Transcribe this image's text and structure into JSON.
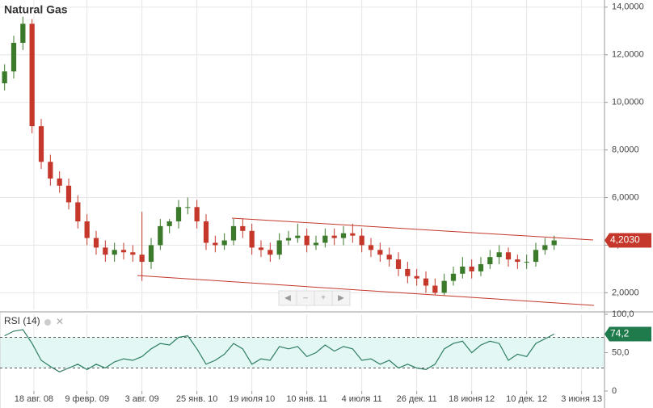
{
  "chart_data": {
    "type": "candlestick",
    "title": "Natural Gas",
    "up_color": "#3b7a2a",
    "down_color": "#c4372a",
    "x": [
      0.5,
      1.5,
      2.5,
      3.5,
      4.5,
      5.5,
      6.5,
      7.5,
      8.5,
      9.5,
      10.5,
      11.5,
      12.5,
      13.5,
      14.5,
      15.5,
      16.5,
      17.5,
      18.5,
      19.5,
      20.5,
      21.5,
      22.5,
      23.5,
      24.5,
      25.5,
      26.5,
      27.5,
      28.5,
      29.5,
      30.5,
      31.5,
      32.5,
      33.5,
      34.5,
      35.5,
      36.5,
      37.5,
      38.5,
      39.5,
      40.5,
      41.5,
      42.5,
      43.5,
      44.5,
      45.5,
      46.5,
      47.5,
      48.5,
      49.5,
      50.5,
      51.5,
      52.5,
      53.5,
      54.5,
      55.5,
      56.5,
      57.5,
      58.5,
      59.5,
      60.5
    ],
    "open": [
      10.8,
      11.3,
      12.5,
      13.3,
      9.0,
      7.5,
      6.8,
      6.5,
      5.8,
      5.0,
      4.3,
      3.9,
      3.6,
      3.8,
      3.7,
      3.6,
      3.3,
      4.0,
      4.8,
      5.0,
      5.6,
      5.6,
      5.0,
      4.1,
      4.0,
      4.2,
      4.8,
      4.6,
      3.9,
      3.8,
      3.6,
      4.2,
      4.3,
      4.4,
      4.0,
      4.1,
      4.4,
      4.3,
      4.5,
      4.4,
      4.0,
      3.8,
      3.6,
      3.4,
      3.0,
      2.7,
      2.6,
      2.3,
      2.0,
      2.5,
      2.8,
      3.1,
      2.9,
      3.2,
      3.5,
      3.7,
      3.4,
      3.3,
      3.3,
      3.8,
      4.0
    ],
    "high": [
      11.6,
      12.8,
      13.6,
      13.5,
      9.3,
      7.8,
      7.1,
      6.8,
      6.1,
      5.3,
      4.6,
      4.2,
      4.1,
      4.1,
      4.0,
      5.4,
      4.3,
      5.1,
      5.1,
      5.9,
      6.0,
      5.9,
      5.3,
      4.4,
      4.5,
      5.1,
      5.1,
      4.9,
      4.2,
      4.1,
      4.5,
      4.6,
      4.9,
      4.7,
      4.4,
      4.7,
      4.7,
      4.8,
      4.9,
      4.7,
      4.3,
      4.1,
      3.9,
      3.7,
      3.3,
      3.0,
      2.9,
      2.6,
      2.8,
      3.1,
      3.5,
      3.4,
      3.5,
      3.8,
      4.0,
      3.9,
      3.6,
      3.6,
      4.1,
      4.3,
      4.4
    ],
    "low": [
      10.5,
      11.0,
      12.2,
      8.7,
      7.2,
      6.5,
      6.2,
      5.5,
      4.7,
      4.0,
      3.6,
      3.3,
      3.3,
      3.4,
      3.3,
      2.5,
      3.0,
      3.8,
      4.5,
      4.7,
      5.3,
      4.7,
      3.8,
      3.7,
      3.8,
      4.0,
      4.3,
      3.6,
      3.5,
      3.3,
      3.4,
      4.0,
      4.1,
      3.7,
      3.8,
      3.9,
      4.0,
      4.0,
      4.1,
      3.7,
      3.5,
      3.3,
      3.1,
      2.7,
      2.4,
      2.3,
      2.0,
      1.9,
      1.9,
      2.3,
      2.6,
      2.6,
      2.7,
      3.0,
      3.2,
      3.1,
      3.0,
      3.0,
      3.1,
      3.6,
      3.8
    ],
    "close": [
      11.3,
      12.5,
      13.3,
      9.0,
      7.5,
      6.8,
      6.5,
      5.8,
      5.0,
      4.3,
      3.9,
      3.6,
      3.8,
      3.7,
      3.6,
      3.3,
      4.0,
      4.8,
      5.0,
      5.6,
      5.6,
      5.0,
      4.1,
      4.0,
      4.2,
      4.8,
      4.6,
      3.9,
      3.8,
      3.6,
      4.2,
      4.3,
      4.4,
      4.0,
      4.1,
      4.4,
      4.3,
      4.5,
      4.4,
      4.0,
      3.8,
      3.6,
      3.4,
      3.0,
      2.7,
      2.6,
      2.3,
      2.0,
      2.5,
      2.8,
      3.1,
      2.9,
      3.2,
      3.5,
      3.7,
      3.4,
      3.3,
      3.3,
      3.8,
      4.0,
      4.2
    ],
    "xlim": [
      0,
      66
    ],
    "xticks": [
      {
        "value": 3.7,
        "label": "18 авг. 08"
      },
      {
        "value": 9.5,
        "label": "9 февр. 09"
      },
      {
        "value": 15.5,
        "label": "3 авг. 09"
      },
      {
        "value": 21.5,
        "label": "25 янв. 10"
      },
      {
        "value": 27.5,
        "label": "19 июля 10"
      },
      {
        "value": 33.5,
        "label": "10 янв. 11"
      },
      {
        "value": 39.5,
        "label": "4 июля 11"
      },
      {
        "value": 45.5,
        "label": "26 дек. 11"
      },
      {
        "value": 51.5,
        "label": "18 июня 12"
      },
      {
        "value": 57.5,
        "label": "10 дек. 12"
      },
      {
        "value": 63.5,
        "label": "3 июня 13"
      }
    ],
    "ylim": [
      1.3,
      14.3
    ],
    "yticks": [
      {
        "value": 2,
        "label": "2,0000"
      },
      {
        "value": 4,
        "label": "4,0000"
      },
      {
        "value": 6,
        "label": "6,0000"
      },
      {
        "value": 8,
        "label": "8,0000"
      },
      {
        "value": 10,
        "label": "10,0000"
      },
      {
        "value": 12,
        "label": "12,0000"
      },
      {
        "value": 14,
        "label": "14,0000"
      }
    ],
    "last_value": {
      "value": 4.203,
      "label": "4,2030"
    },
    "grid": true,
    "indicator": {
      "type": "line",
      "title": "RSI (14)",
      "color": "#2f7d62",
      "band_color": "#e3f8f4",
      "tag_color": "#1f7a4c",
      "values": [
        72,
        78,
        80,
        62,
        40,
        32,
        25,
        30,
        35,
        28,
        35,
        30,
        38,
        42,
        40,
        45,
        55,
        62,
        60,
        70,
        72,
        55,
        35,
        40,
        48,
        62,
        55,
        35,
        42,
        40,
        58,
        55,
        58,
        45,
        50,
        60,
        52,
        58,
        55,
        40,
        42,
        35,
        40,
        30,
        35,
        30,
        28,
        35,
        55,
        62,
        65,
        50,
        60,
        65,
        62,
        40,
        48,
        45,
        62,
        68,
        74.2
      ],
      "ylim": [
        0,
        100
      ],
      "yticks": [
        {
          "value": 100,
          "label": "100,0"
        },
        {
          "value": 50,
          "label": "50,0"
        },
        0
      ],
      "levels": [
        30,
        70
      ],
      "last_value": {
        "value": 74.2,
        "label": "74,2"
      }
    }
  },
  "controls": [
    "◀",
    "–",
    "+",
    "▶"
  ]
}
